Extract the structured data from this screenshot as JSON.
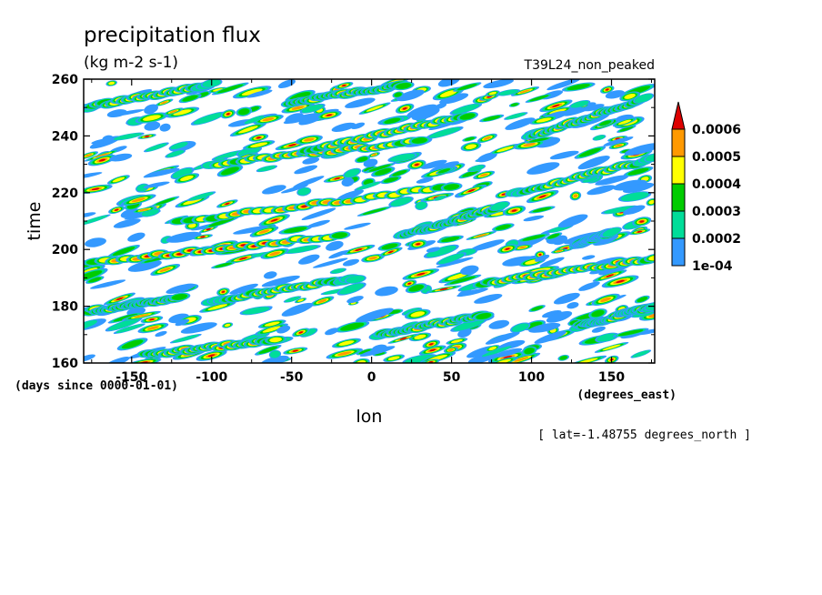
{
  "chart_data": {
    "type": "heatmap",
    "title": "precipitation flux",
    "units": "(kg m-2 s-1)",
    "run_label": "T39L24_non_peaked",
    "xlabel": "lon",
    "x_unit_label": "(degrees_east)",
    "ylabel": "time",
    "y_unit_label": "(days since 0000-01-01)",
    "annotation": "[ lat=-1.48755 degrees_north ]",
    "xlim": [
      -180,
      177
    ],
    "ylim": [
      160,
      260
    ],
    "x_ticks": [
      -150,
      -100,
      -50,
      0,
      50,
      100,
      150
    ],
    "y_ticks": [
      160,
      180,
      200,
      220,
      240,
      260
    ],
    "colorbar": {
      "levels": [
        "1e-04",
        "0.0002",
        "0.0003",
        "0.0004",
        "0.0005",
        "0.0006"
      ],
      "level_values": [
        0.0001,
        0.0002,
        0.0003,
        0.0004,
        0.0005,
        0.0006
      ],
      "colors": [
        "#3399ff",
        "#00dd99",
        "#00cc00",
        "#ffff00",
        "#ff9900",
        "#dd0000"
      ]
    },
    "features": [
      {
        "lon0": -180,
        "t0": 195,
        "lon1": -20,
        "t1": 205,
        "peak": 0.00065
      },
      {
        "lon0": -180,
        "t0": 178,
        "lon1": -120,
        "t1": 183,
        "peak": 0.00062
      },
      {
        "lon0": -140,
        "t0": 163,
        "lon1": -60,
        "t1": 168,
        "peak": 0.00063
      },
      {
        "lon0": 5,
        "t0": 170,
        "lon1": 70,
        "t1": 177,
        "peak": 0.00058
      },
      {
        "lon0": 70,
        "t0": 188,
        "lon1": 177,
        "t1": 197,
        "peak": 0.00066
      },
      {
        "lon0": 130,
        "t0": 202,
        "lon1": 150,
        "t1": 206,
        "peak": 0.0006
      },
      {
        "lon0": 130,
        "t0": 173,
        "lon1": 177,
        "t1": 180,
        "peak": 0.00055
      },
      {
        "lon0": -120,
        "t0": 210,
        "lon1": 50,
        "t1": 222,
        "peak": 0.00055
      },
      {
        "lon0": -100,
        "t0": 230,
        "lon1": 30,
        "t1": 238,
        "peak": 0.0006
      },
      {
        "lon0": -40,
        "t0": 235,
        "lon1": 60,
        "t1": 247,
        "peak": 0.00058
      },
      {
        "lon0": 20,
        "t0": 205,
        "lon1": 80,
        "t1": 215,
        "peak": 0.00052
      },
      {
        "lon0": 100,
        "t0": 240,
        "lon1": 170,
        "t1": 253,
        "peak": 0.00055
      },
      {
        "lon0": -180,
        "t0": 250,
        "lon1": -100,
        "t1": 258,
        "peak": 0.0005
      },
      {
        "lon0": -50,
        "t0": 252,
        "lon1": 20,
        "t1": 258,
        "peak": 0.00055
      },
      {
        "lon0": -100,
        "t0": 182,
        "lon1": -10,
        "t1": 190,
        "peak": 0.00048
      },
      {
        "lon0": 90,
        "t0": 220,
        "lon1": 177,
        "t1": 232,
        "peak": 0.0005
      }
    ]
  }
}
